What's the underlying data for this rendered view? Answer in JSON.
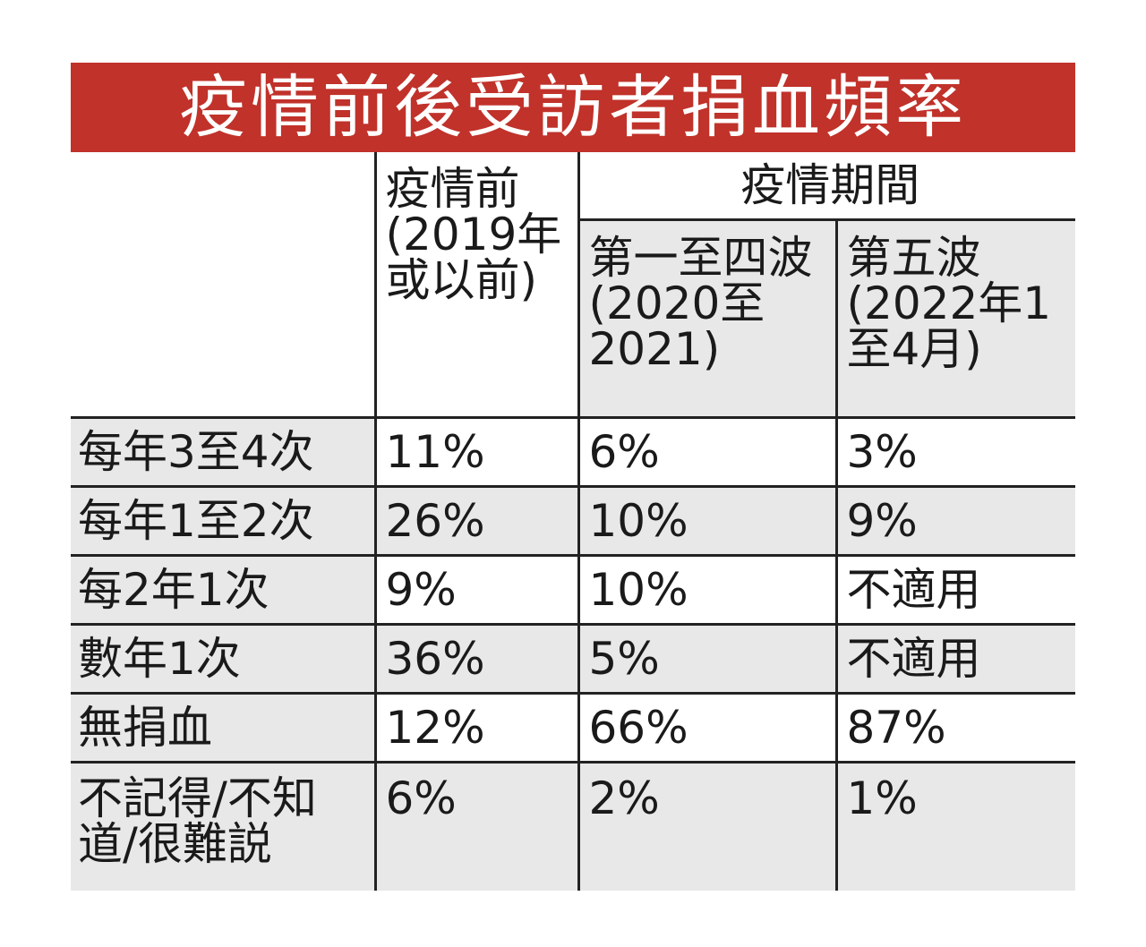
{
  "title": "疫情前後受訪者捐血頻率",
  "headers": {
    "pre": "疫情前(2019年或以前)",
    "during": "疫情期間",
    "wave1to4": "第一至四波(2020至2021)",
    "wave5": "第五波(2022年1至4月)"
  },
  "rows": [
    {
      "label": "每年3至4次",
      "pre": "11%",
      "wave1to4": "6%",
      "wave5": "3%"
    },
    {
      "label": "每年1至2次",
      "pre": "26%",
      "wave1to4": "10%",
      "wave5": "9%"
    },
    {
      "label": "每2年1次",
      "pre": "9%",
      "wave1to4": "10%",
      "wave5": "不適用"
    },
    {
      "label": "數年1次",
      "pre": "36%",
      "wave1to4": "5%",
      "wave5": "不適用"
    },
    {
      "label": "無捐血",
      "pre": "12%",
      "wave1to4": "66%",
      "wave5": "87%"
    },
    {
      "label": "不記得/不知道/很難説",
      "pre": "6%",
      "wave1to4": "2%",
      "wave5": "1%"
    }
  ],
  "colors": {
    "title_bg": "#c0322a",
    "shade": "#e8e8e8",
    "rule": "#222222"
  }
}
